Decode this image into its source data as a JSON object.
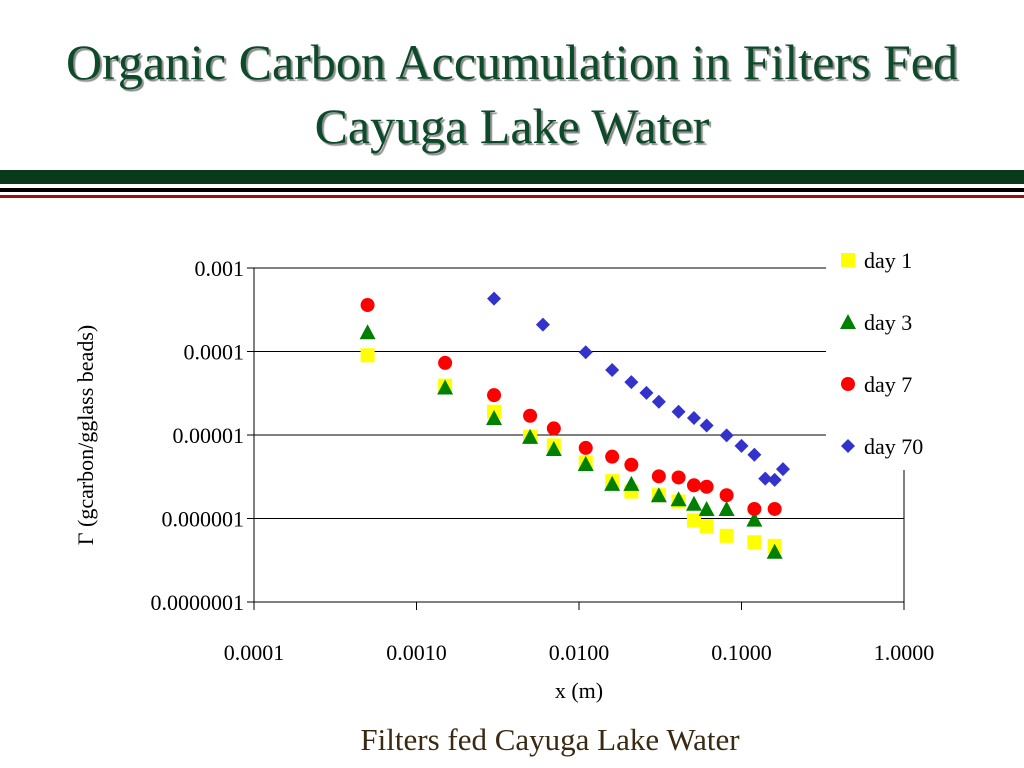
{
  "slide": {
    "title": "Organic Carbon Accumulation in Filters Fed Cayuga Lake Water",
    "caption": "Filters fed Cayuga Lake Water"
  },
  "chart_data": {
    "type": "scatter",
    "title": "",
    "xlabel": "x (m)",
    "ylabel": "Γ (gcarbon/gglass beads)",
    "x_scale": "log",
    "y_scale": "log",
    "xlim": [
      0.0001,
      1.0
    ],
    "ylim": [
      1e-07,
      0.001
    ],
    "x_tick_values": [
      0.0001,
      0.001,
      0.01,
      0.1,
      1.0
    ],
    "x_tick_labels": [
      "0.0001",
      "0.0010",
      "0.0100",
      "0.1000",
      "1.0000"
    ],
    "y_tick_values": [
      0.001,
      0.0001,
      1e-05,
      1e-06,
      1e-07
    ],
    "y_tick_labels": [
      "0.001",
      "0.0001",
      "0.00001",
      "0.000001",
      "0.0000001"
    ],
    "grid": "horizontal major gridlines",
    "legend_position": "right",
    "series": [
      {
        "name": "day 1",
        "marker": "square",
        "color": "#ffff00",
        "points": [
          [
            0.0005,
            9e-05
          ],
          [
            0.0015,
            3.9e-05
          ],
          [
            0.003,
            1.9e-05
          ],
          [
            0.005,
            9.5e-06
          ],
          [
            0.007,
            7.5e-06
          ],
          [
            0.011,
            4.7e-06
          ],
          [
            0.016,
            2.8e-06
          ],
          [
            0.021,
            2.1e-06
          ],
          [
            0.031,
            1.9e-06
          ],
          [
            0.041,
            1.6e-06
          ],
          [
            0.051,
            9.5e-07
          ],
          [
            0.061,
            8.1e-07
          ],
          [
            0.081,
            6.2e-07
          ],
          [
            0.12,
            5.2e-07
          ],
          [
            0.16,
            4.7e-07
          ]
        ]
      },
      {
        "name": "day 3",
        "marker": "triangle",
        "color": "#008000",
        "points": [
          [
            0.0005,
            0.00017
          ],
          [
            0.0015,
            3.7e-05
          ],
          [
            0.003,
            1.6e-05
          ],
          [
            0.005,
            9.5e-06
          ],
          [
            0.007,
            6.8e-06
          ],
          [
            0.011,
            4.5e-06
          ],
          [
            0.016,
            2.6e-06
          ],
          [
            0.021,
            2.6e-06
          ],
          [
            0.031,
            1.9e-06
          ],
          [
            0.041,
            1.7e-06
          ],
          [
            0.051,
            1.5e-06
          ],
          [
            0.061,
            1.3e-06
          ],
          [
            0.081,
            1.3e-06
          ],
          [
            0.12,
            9.7e-07
          ],
          [
            0.16,
            4e-07
          ]
        ]
      },
      {
        "name": "day 7",
        "marker": "circle",
        "color": "#ff0000",
        "points": [
          [
            0.0005,
            0.00036
          ],
          [
            0.0015,
            7.3e-05
          ],
          [
            0.003,
            3e-05
          ],
          [
            0.005,
            1.7e-05
          ],
          [
            0.007,
            1.2e-05
          ],
          [
            0.011,
            7e-06
          ],
          [
            0.016,
            5.5e-06
          ],
          [
            0.021,
            4.4e-06
          ],
          [
            0.031,
            3.2e-06
          ],
          [
            0.041,
            3.1e-06
          ],
          [
            0.051,
            2.5e-06
          ],
          [
            0.061,
            2.4e-06
          ],
          [
            0.081,
            1.9e-06
          ],
          [
            0.12,
            1.3e-06
          ],
          [
            0.16,
            1.3e-06
          ]
        ]
      },
      {
        "name": "day 70",
        "marker": "diamond",
        "color": "#3333cc",
        "points": [
          [
            0.003,
            0.00043
          ],
          [
            0.006,
            0.00021
          ],
          [
            0.011,
            9.8e-05
          ],
          [
            0.016,
            6e-05
          ],
          [
            0.021,
            4.3e-05
          ],
          [
            0.026,
            3.2e-05
          ],
          [
            0.031,
            2.5e-05
          ],
          [
            0.041,
            1.9e-05
          ],
          [
            0.051,
            1.6e-05
          ],
          [
            0.061,
            1.3e-05
          ],
          [
            0.081,
            9.9e-06
          ],
          [
            0.1,
            7.4e-06
          ],
          [
            0.12,
            5.8e-06
          ],
          [
            0.14,
            3e-06
          ],
          [
            0.16,
            2.9e-06
          ],
          [
            0.18,
            3.9e-06
          ]
        ]
      }
    ]
  }
}
